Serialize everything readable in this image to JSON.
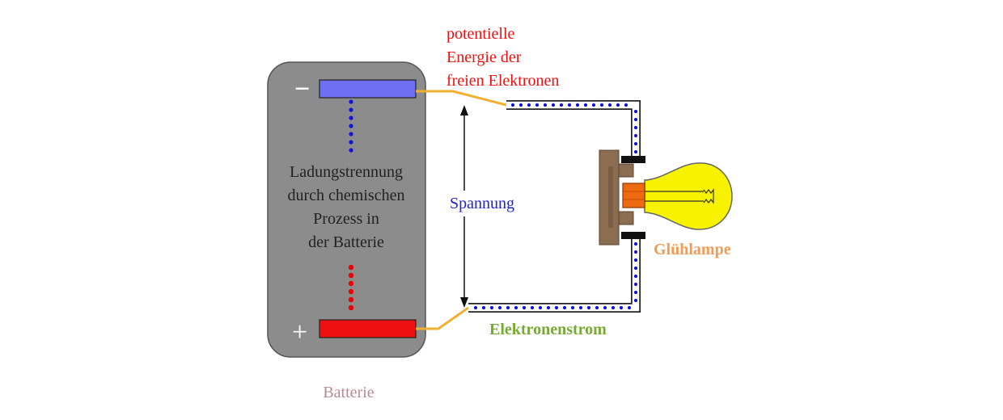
{
  "labels": {
    "minus_sign": "−",
    "plus_sign": "+",
    "battery_process_lines": [
      "Ladungstrennung",
      "durch chemischen",
      "Prozess in",
      "der Batterie"
    ],
    "battery_caption": "Batterie",
    "potential_lines": [
      "potentielle",
      "Energie der",
      "freien Elektronen"
    ],
    "voltage": "Spannung",
    "bulb": "Glühlampe",
    "electron_current": "Elektronenstrom"
  },
  "colors": {
    "battery_body": "#8c8c8c",
    "negative_terminal": "#6f6ff2",
    "positive_terminal": "#ee1111",
    "wire_inner": "#ffffff",
    "electron_dots": "#1111dd",
    "positive_dots": "#ee0000",
    "lead_wire": "#f0b030",
    "bulb_glass": "#f7f200",
    "bulb_socket": "#8b6d52",
    "bulb_base": "#ee6a10",
    "text_potential": "#ee1111",
    "text_voltage": "#2222cc",
    "text_bulb": "#f39a55",
    "text_current": "#77aa33",
    "text_battery": "#b88a90",
    "text_process": "#222222"
  }
}
